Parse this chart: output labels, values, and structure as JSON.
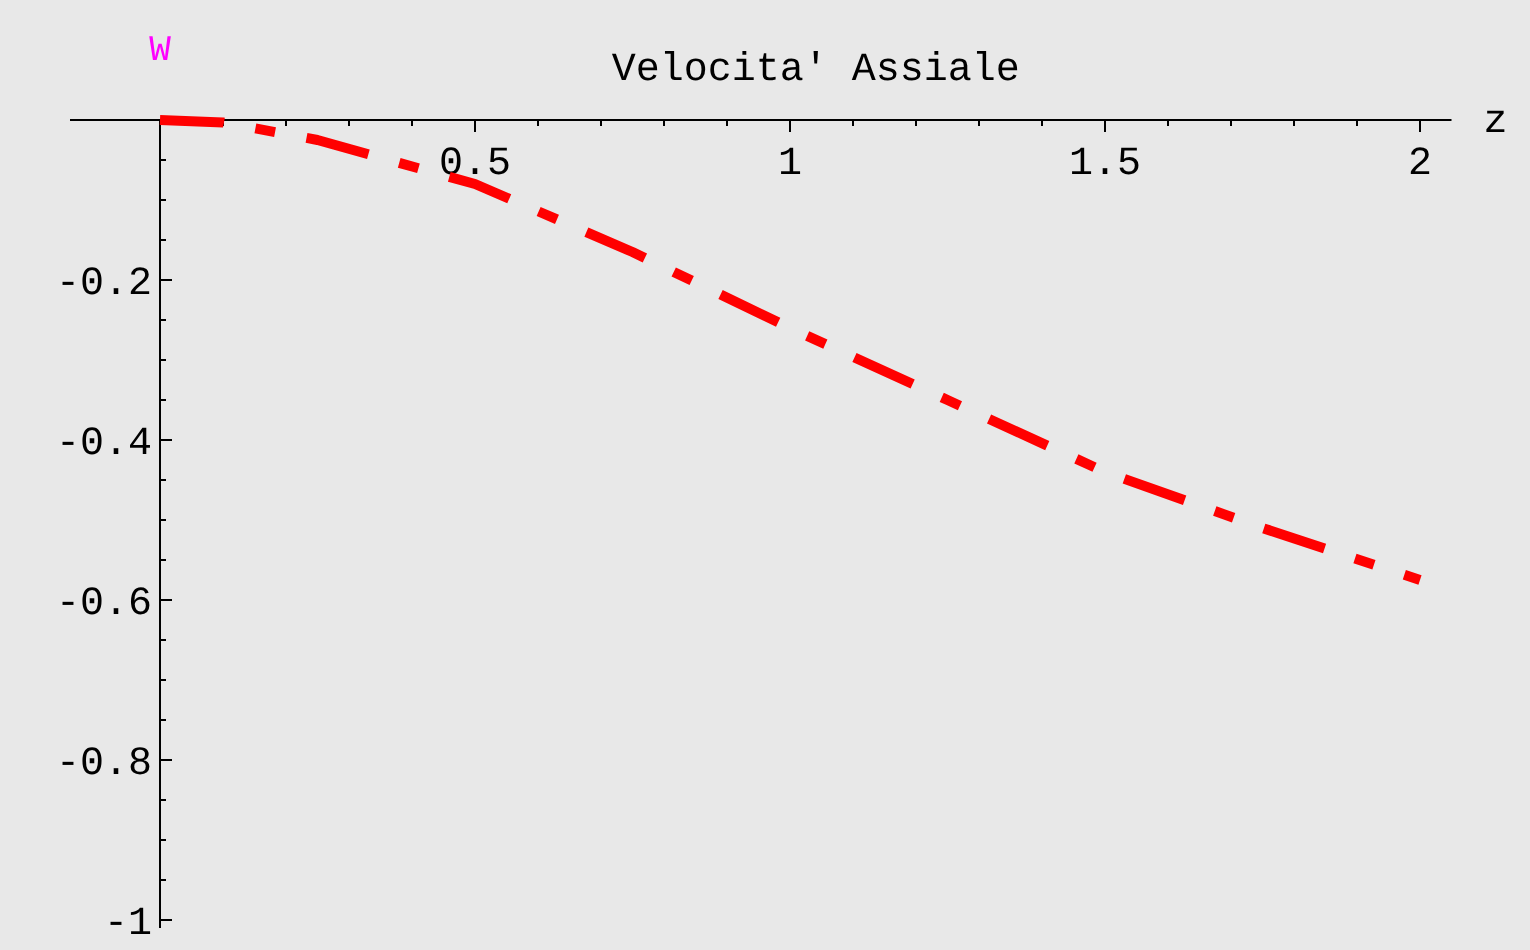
{
  "chart_data": {
    "type": "line",
    "title": "Velocita' Assiale",
    "xlabel": "z",
    "ylabel": "W",
    "x": [
      0,
      0.1,
      0.25,
      0.5,
      0.75,
      1,
      1.25,
      1.5,
      1.75,
      2
    ],
    "series": [
      {
        "color": "#ff0000",
        "values": [
          0,
          -0.003,
          -0.025,
          -0.08,
          -0.165,
          -0.26,
          -0.35,
          -0.44,
          -0.51,
          -0.575
        ]
      }
    ],
    "line_style": "dashed",
    "marker": "none",
    "grid": false,
    "xlim": [
      0,
      2.05
    ],
    "ylim": [
      -1.01,
      0
    ],
    "xticks": [
      {
        "value": 0.1,
        "label": null
      },
      {
        "value": 0.2,
        "label": null
      },
      {
        "value": 0.3,
        "label": null
      },
      {
        "value": 0.4,
        "label": null
      },
      0.5,
      {
        "value": 0.6,
        "label": null
      },
      {
        "value": 0.7,
        "label": null
      },
      {
        "value": 0.8,
        "label": null
      },
      {
        "value": 0.9,
        "label": null
      },
      1,
      {
        "value": 1.1,
        "label": null
      },
      {
        "value": 1.2,
        "label": null
      },
      {
        "value": 1.3,
        "label": null
      },
      {
        "value": 1.4,
        "label": null
      },
      1.5,
      {
        "value": 1.6,
        "label": null
      },
      {
        "value": 1.7,
        "label": null
      },
      {
        "value": 1.8,
        "label": null
      },
      {
        "value": 1.9,
        "label": null
      },
      2
    ],
    "yticks": [
      {
        "value": -0.05,
        "label": null
      },
      {
        "value": -0.1,
        "label": null
      },
      {
        "value": -0.15,
        "label": null
      },
      -0.2,
      {
        "value": -0.25,
        "label": null
      },
      {
        "value": -0.3,
        "label": null
      },
      {
        "value": -0.35,
        "label": null
      },
      -0.4,
      {
        "value": -0.45,
        "label": null
      },
      {
        "value": -0.5,
        "label": null
      },
      {
        "value": -0.55,
        "label": null
      },
      -0.6,
      {
        "value": -0.65,
        "label": null
      },
      {
        "value": -0.7,
        "label": null
      },
      {
        "value": -0.75,
        "label": null
      },
      -0.8,
      {
        "value": -0.85,
        "label": null
      },
      {
        "value": -0.9,
        "label": null
      },
      {
        "value": -0.95,
        "label": null
      },
      -1
    ]
  }
}
